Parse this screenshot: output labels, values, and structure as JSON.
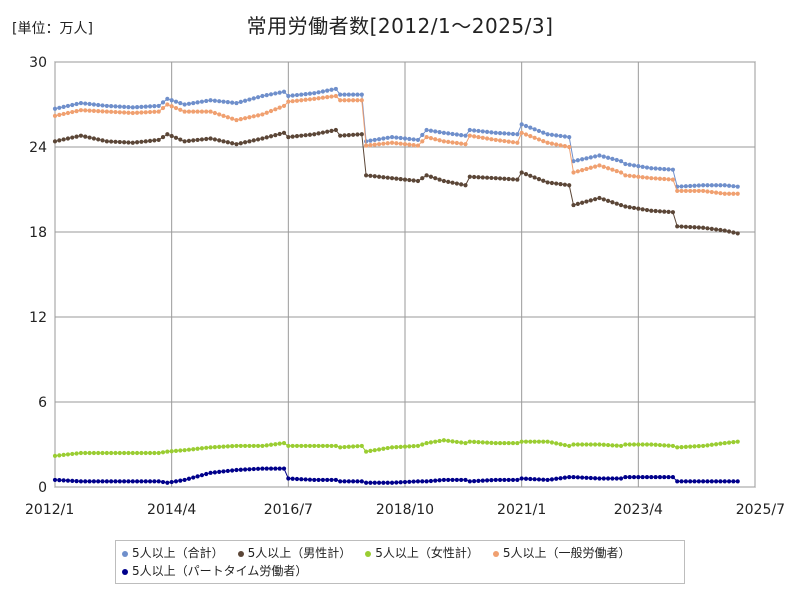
{
  "unit_label": "[単位：万人]",
  "chart_data": {
    "type": "line",
    "title": "常用労働者数[2012/1～2025/3]",
    "xlabel": "",
    "ylabel": "",
    "xlim": [
      "2012/1",
      "2025/7"
    ],
    "ylim": [
      0,
      30
    ],
    "yticks": [
      0,
      6,
      12,
      18,
      24,
      30
    ],
    "xticks": [
      "2012/1",
      "2014/4",
      "2016/7",
      "2018/10",
      "2021/1",
      "2023/4",
      "2025/7"
    ],
    "grid": true,
    "legend_position": "bottom",
    "series": [
      {
        "name": "5人以上（合計）",
        "color": "#6f8fcb",
        "points": [
          [
            "2012/1",
            26.7
          ],
          [
            "2012/7",
            27.1
          ],
          [
            "2013/1",
            26.9
          ],
          [
            "2013/7",
            26.8
          ],
          [
            "2014/1",
            26.9
          ],
          [
            "2014/3",
            27.4
          ],
          [
            "2014/7",
            27.0
          ],
          [
            "2015/1",
            27.3
          ],
          [
            "2015/7",
            27.1
          ],
          [
            "2016/1",
            27.6
          ],
          [
            "2016/6",
            27.9
          ],
          [
            "2016/7",
            27.6
          ],
          [
            "2017/1",
            27.8
          ],
          [
            "2017/6",
            28.1
          ],
          [
            "2017/7",
            27.7
          ],
          [
            "2017/12",
            27.7
          ],
          [
            "2018/1",
            24.4
          ],
          [
            "2018/7",
            24.7
          ],
          [
            "2019/1",
            24.5
          ],
          [
            "2019/3",
            25.2
          ],
          [
            "2019/7",
            25.0
          ],
          [
            "2019/12",
            24.8
          ],
          [
            "2020/1",
            25.2
          ],
          [
            "2020/7",
            25.0
          ],
          [
            "2020/12",
            24.9
          ],
          [
            "2021/1",
            25.6
          ],
          [
            "2021/7",
            24.9
          ],
          [
            "2021/12",
            24.7
          ],
          [
            "2022/1",
            23.0
          ],
          [
            "2022/7",
            23.4
          ],
          [
            "2022/12",
            23.0
          ],
          [
            "2023/1",
            22.8
          ],
          [
            "2023/7",
            22.5
          ],
          [
            "2023/12",
            22.4
          ],
          [
            "2024/1",
            21.2
          ],
          [
            "2024/7",
            21.3
          ],
          [
            "2024/12",
            21.3
          ],
          [
            "2025/3",
            21.2
          ]
        ]
      },
      {
        "name": "5人以上（男性計）",
        "color": "#5b4637",
        "points": [
          [
            "2012/1",
            24.4
          ],
          [
            "2012/7",
            24.8
          ],
          [
            "2013/1",
            24.4
          ],
          [
            "2013/7",
            24.3
          ],
          [
            "2014/1",
            24.5
          ],
          [
            "2014/3",
            24.9
          ],
          [
            "2014/7",
            24.4
          ],
          [
            "2015/1",
            24.6
          ],
          [
            "2015/7",
            24.2
          ],
          [
            "2016/1",
            24.6
          ],
          [
            "2016/6",
            25.0
          ],
          [
            "2016/7",
            24.7
          ],
          [
            "2017/1",
            24.9
          ],
          [
            "2017/6",
            25.2
          ],
          [
            "2017/7",
            24.8
          ],
          [
            "2017/12",
            24.9
          ],
          [
            "2018/1",
            22.0
          ],
          [
            "2018/7",
            21.8
          ],
          [
            "2019/1",
            21.6
          ],
          [
            "2019/3",
            22.0
          ],
          [
            "2019/7",
            21.6
          ],
          [
            "2019/12",
            21.3
          ],
          [
            "2020/1",
            21.9
          ],
          [
            "2020/7",
            21.8
          ],
          [
            "2020/12",
            21.7
          ],
          [
            "2021/1",
            22.2
          ],
          [
            "2021/7",
            21.5
          ],
          [
            "2021/12",
            21.3
          ],
          [
            "2022/1",
            19.9
          ],
          [
            "2022/7",
            20.4
          ],
          [
            "2022/12",
            19.9
          ],
          [
            "2023/1",
            19.8
          ],
          [
            "2023/7",
            19.5
          ],
          [
            "2023/12",
            19.4
          ],
          [
            "2024/1",
            18.4
          ],
          [
            "2024/7",
            18.3
          ],
          [
            "2024/12",
            18.1
          ],
          [
            "2025/3",
            17.9
          ]
        ]
      },
      {
        "name": "5人以上（女性計）",
        "color": "#9acd32",
        "points": [
          [
            "2012/1",
            2.2
          ],
          [
            "2012/7",
            2.4
          ],
          [
            "2013/1",
            2.4
          ],
          [
            "2013/7",
            2.4
          ],
          [
            "2014/1",
            2.4
          ],
          [
            "2014/3",
            2.5
          ],
          [
            "2014/7",
            2.6
          ],
          [
            "2015/1",
            2.8
          ],
          [
            "2015/7",
            2.9
          ],
          [
            "2016/1",
            2.9
          ],
          [
            "2016/6",
            3.1
          ],
          [
            "2016/7",
            2.9
          ],
          [
            "2017/1",
            2.9
          ],
          [
            "2017/6",
            2.9
          ],
          [
            "2017/7",
            2.8
          ],
          [
            "2017/12",
            2.9
          ],
          [
            "2018/1",
            2.5
          ],
          [
            "2018/7",
            2.8
          ],
          [
            "2019/1",
            2.9
          ],
          [
            "2019/3",
            3.1
          ],
          [
            "2019/7",
            3.3
          ],
          [
            "2019/12",
            3.1
          ],
          [
            "2020/1",
            3.2
          ],
          [
            "2020/7",
            3.1
          ],
          [
            "2020/12",
            3.1
          ],
          [
            "2021/1",
            3.2
          ],
          [
            "2021/7",
            3.2
          ],
          [
            "2021/12",
            2.9
          ],
          [
            "2022/1",
            3.0
          ],
          [
            "2022/7",
            3.0
          ],
          [
            "2022/12",
            2.9
          ],
          [
            "2023/1",
            3.0
          ],
          [
            "2023/7",
            3.0
          ],
          [
            "2023/12",
            2.9
          ],
          [
            "2024/1",
            2.8
          ],
          [
            "2024/7",
            2.9
          ],
          [
            "2024/12",
            3.1
          ],
          [
            "2025/3",
            3.2
          ]
        ]
      },
      {
        "name": "5人以上（一般労働者）",
        "color": "#f0a070",
        "points": [
          [
            "2012/1",
            26.2
          ],
          [
            "2012/7",
            26.6
          ],
          [
            "2013/1",
            26.5
          ],
          [
            "2013/7",
            26.4
          ],
          [
            "2014/1",
            26.5
          ],
          [
            "2014/3",
            27.0
          ],
          [
            "2014/7",
            26.5
          ],
          [
            "2015/1",
            26.5
          ],
          [
            "2015/7",
            25.9
          ],
          [
            "2016/1",
            26.3
          ],
          [
            "2016/6",
            26.9
          ],
          [
            "2016/7",
            27.2
          ],
          [
            "2017/1",
            27.4
          ],
          [
            "2017/6",
            27.6
          ],
          [
            "2017/7",
            27.3
          ],
          [
            "2017/12",
            27.3
          ],
          [
            "2018/1",
            24.1
          ],
          [
            "2018/7",
            24.3
          ],
          [
            "2019/1",
            24.1
          ],
          [
            "2019/3",
            24.7
          ],
          [
            "2019/7",
            24.4
          ],
          [
            "2019/12",
            24.2
          ],
          [
            "2020/1",
            24.8
          ],
          [
            "2020/7",
            24.5
          ],
          [
            "2020/12",
            24.3
          ],
          [
            "2021/1",
            25.0
          ],
          [
            "2021/7",
            24.3
          ],
          [
            "2021/12",
            24.0
          ],
          [
            "2022/1",
            22.2
          ],
          [
            "2022/7",
            22.7
          ],
          [
            "2022/12",
            22.2
          ],
          [
            "2023/1",
            22.0
          ],
          [
            "2023/7",
            21.8
          ],
          [
            "2023/12",
            21.7
          ],
          [
            "2024/1",
            20.9
          ],
          [
            "2024/7",
            20.9
          ],
          [
            "2024/12",
            20.7
          ],
          [
            "2025/3",
            20.7
          ]
        ]
      },
      {
        "name": "5人以上（パートタイム労働者）",
        "color": "#00008b",
        "points": [
          [
            "2012/1",
            0.5
          ],
          [
            "2012/7",
            0.4
          ],
          [
            "2013/1",
            0.4
          ],
          [
            "2013/7",
            0.4
          ],
          [
            "2014/1",
            0.4
          ],
          [
            "2014/3",
            0.3
          ],
          [
            "2014/7",
            0.5
          ],
          [
            "2015/1",
            1.0
          ],
          [
            "2015/7",
            1.2
          ],
          [
            "2016/1",
            1.3
          ],
          [
            "2016/6",
            1.3
          ],
          [
            "2016/7",
            0.6
          ],
          [
            "2017/1",
            0.5
          ],
          [
            "2017/6",
            0.5
          ],
          [
            "2017/7",
            0.4
          ],
          [
            "2017/12",
            0.4
          ],
          [
            "2018/1",
            0.3
          ],
          [
            "2018/7",
            0.3
          ],
          [
            "2019/1",
            0.4
          ],
          [
            "2019/3",
            0.4
          ],
          [
            "2019/7",
            0.5
          ],
          [
            "2019/12",
            0.5
          ],
          [
            "2020/1",
            0.4
          ],
          [
            "2020/7",
            0.5
          ],
          [
            "2020/12",
            0.5
          ],
          [
            "2021/1",
            0.6
          ],
          [
            "2021/7",
            0.5
          ],
          [
            "2021/12",
            0.7
          ],
          [
            "2022/1",
            0.7
          ],
          [
            "2022/7",
            0.6
          ],
          [
            "2022/12",
            0.6
          ],
          [
            "2023/1",
            0.7
          ],
          [
            "2023/7",
            0.7
          ],
          [
            "2023/12",
            0.7
          ],
          [
            "2024/1",
            0.4
          ],
          [
            "2024/7",
            0.4
          ],
          [
            "2024/12",
            0.4
          ],
          [
            "2025/3",
            0.4
          ]
        ]
      }
    ]
  }
}
